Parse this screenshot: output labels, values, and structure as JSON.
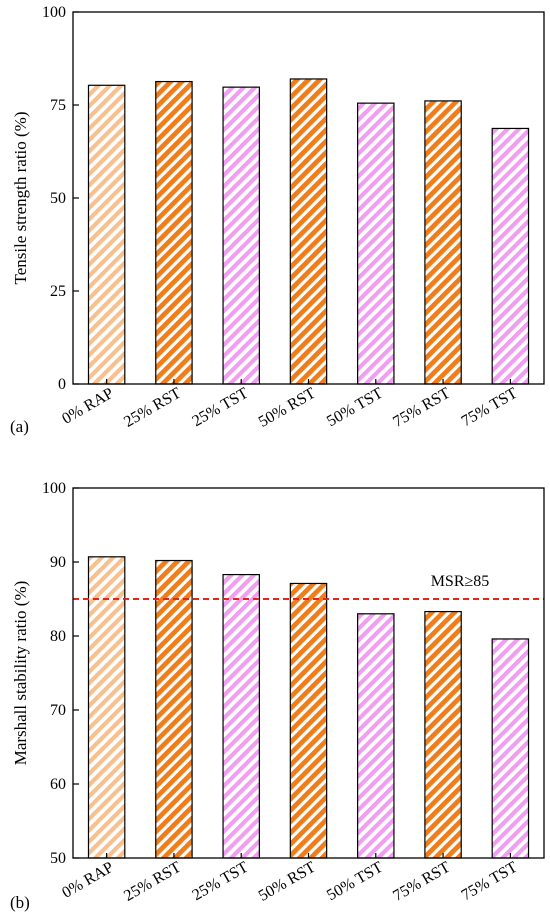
{
  "colors": {
    "light_orange": "#f6c08f",
    "orange": "#ef7d1a",
    "pink": "#ef9ef0",
    "reference_line": "#e8231c",
    "axis": "#000000"
  },
  "chart_data": [
    {
      "type": "bar",
      "panel_label": "(a)",
      "ylabel": "Tensile strength ratio (%)",
      "categories": [
        "0% RAP",
        "25% RST",
        "25% TST",
        "50% RST",
        "50% TST",
        "75% RST",
        "75% TST"
      ],
      "values": [
        80.3,
        81.3,
        79.8,
        82.0,
        75.5,
        76.1,
        68.7
      ],
      "bar_colors": [
        "light_orange",
        "orange",
        "pink",
        "orange",
        "pink",
        "orange",
        "pink"
      ],
      "ylim": [
        0,
        100
      ],
      "yticks": [
        0,
        25,
        50,
        75,
        100
      ],
      "pattern": "diagonal-hatch",
      "grid": false
    },
    {
      "type": "bar",
      "panel_label": "(b)",
      "ylabel": "Marshall stability ratio (%)",
      "categories": [
        "0% RAP",
        "25% RST",
        "25% TST",
        "50% RST",
        "50% TST",
        "75% RST",
        "75% TST"
      ],
      "values": [
        90.7,
        90.2,
        88.3,
        87.1,
        83.0,
        83.3,
        79.6
      ],
      "bar_colors": [
        "light_orange",
        "orange",
        "pink",
        "orange",
        "pink",
        "orange",
        "pink"
      ],
      "ylim": [
        50,
        100
      ],
      "yticks": [
        50,
        60,
        70,
        80,
        90,
        100
      ],
      "pattern": "diagonal-hatch",
      "grid": false,
      "reference_line": {
        "y": 85,
        "label": "MSR≥85",
        "style": "dashed"
      }
    }
  ]
}
